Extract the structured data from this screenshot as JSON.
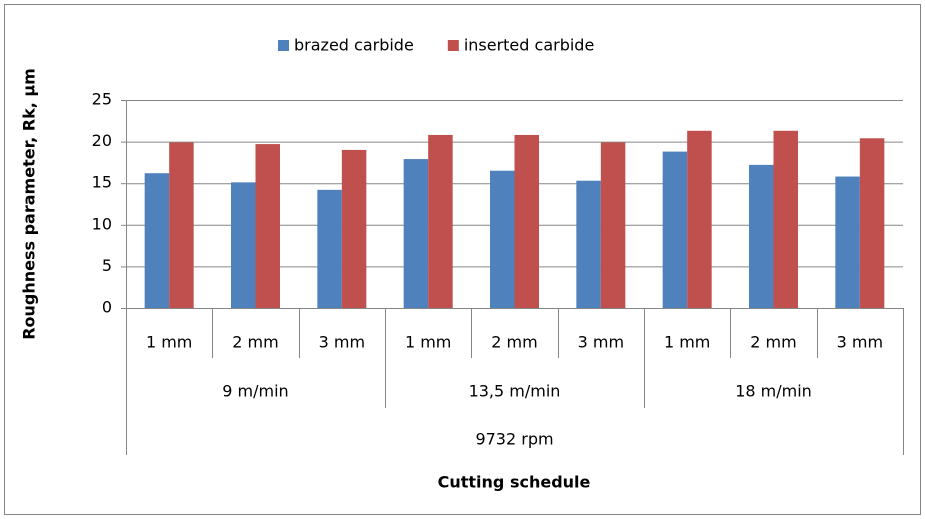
{
  "chart_data": {
    "type": "bar",
    "y_label": "Roughness parameter, Rk, µm",
    "x_label": "Cutting schedule",
    "categories": [
      "1 mm",
      "2 mm",
      "3 mm",
      "1 mm",
      "2 mm",
      "3 mm",
      "1 mm",
      "2 mm",
      "3 mm"
    ],
    "category_groups": [
      "9 m/min",
      "13,5 m/min",
      "18 m/min"
    ],
    "category_supergroup": "9732 rpm",
    "series": [
      {
        "name": "brazed carbide",
        "color": "#4f81bd",
        "values": [
          16.2,
          15.1,
          14.2,
          17.9,
          16.5,
          15.3,
          18.8,
          17.2,
          15.8
        ]
      },
      {
        "name": "inserted carbide",
        "color": "#c0504d",
        "values": [
          19.9,
          19.7,
          19.0,
          20.8,
          20.8,
          19.9,
          21.3,
          21.3,
          20.4
        ]
      }
    ],
    "ylim": [
      0,
      25
    ],
    "yticks": [
      0,
      5,
      10,
      15,
      20,
      25
    ],
    "grid": true,
    "legend": "top"
  }
}
